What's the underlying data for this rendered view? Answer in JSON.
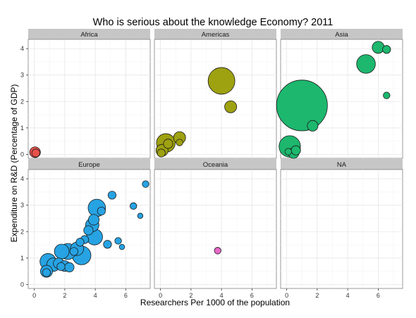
{
  "chart_data": {
    "type": "scatter",
    "title": "Who is serious about the knowledge Economy?   2011",
    "xlabel": "Researchers Per 1000 of the population",
    "ylabel": "Expenditure on R&D (Percentage of GDP)",
    "xlim": [
      -0.4,
      7.6
    ],
    "ylim": [
      -0.15,
      4.35
    ],
    "x_ticks": [
      "0",
      "2",
      "4",
      "6"
    ],
    "y_ticks": [
      "0",
      "1",
      "2",
      "3",
      "4"
    ],
    "facet_layout": "2 rows x 3 columns",
    "grid": true,
    "point_size_meaning": "relative bubble size",
    "panels": [
      {
        "label": "Africa",
        "color": "#E8514A",
        "points": [
          {
            "x": 0.05,
            "y": 0.08,
            "size": 4
          },
          {
            "x": 0.1,
            "y": 0.05,
            "size": 3
          }
        ]
      },
      {
        "label": "Americas",
        "color": "#9EA110",
        "points": [
          {
            "x": 4.0,
            "y": 2.78,
            "size": 10
          },
          {
            "x": 4.6,
            "y": 1.8,
            "size": 4.5
          },
          {
            "x": 1.25,
            "y": 0.63,
            "size": 4.5
          },
          {
            "x": 0.35,
            "y": 0.43,
            "size": 7
          },
          {
            "x": 0.5,
            "y": 0.4,
            "size": 3.5
          },
          {
            "x": 1.25,
            "y": 0.45,
            "size": 2.5
          },
          {
            "x": 0.1,
            "y": 0.15,
            "size": 4.5
          },
          {
            "x": 0.05,
            "y": 0.05,
            "size": 3
          }
        ]
      },
      {
        "label": "Asia",
        "color": "#1DB76E",
        "points": [
          {
            "x": 1.0,
            "y": 1.85,
            "size": 19
          },
          {
            "x": 6.0,
            "y": 4.05,
            "size": 4.5
          },
          {
            "x": 6.55,
            "y": 3.97,
            "size": 3
          },
          {
            "x": 5.2,
            "y": 3.42,
            "size": 7
          },
          {
            "x": 6.55,
            "y": 2.23,
            "size": 2.5
          },
          {
            "x": 1.7,
            "y": 1.08,
            "size": 4
          },
          {
            "x": 0.2,
            "y": 0.3,
            "size": 8
          },
          {
            "x": 0.6,
            "y": 0.15,
            "size": 3.5
          },
          {
            "x": 0.45,
            "y": 0.05,
            "size": 4
          },
          {
            "x": 0.1,
            "y": 0.1,
            "size": 2.5
          }
        ]
      },
      {
        "label": "Europe",
        "color": "#27A3E3",
        "points": [
          {
            "x": 4.1,
            "y": 2.9,
            "size": 6.5
          },
          {
            "x": 4.4,
            "y": 2.78,
            "size": 3
          },
          {
            "x": 5.1,
            "y": 3.38,
            "size": 3
          },
          {
            "x": 6.5,
            "y": 2.97,
            "size": 2.5
          },
          {
            "x": 6.95,
            "y": 2.6,
            "size": 2
          },
          {
            "x": 7.3,
            "y": 3.8,
            "size": 2.5
          },
          {
            "x": 3.9,
            "y": 2.45,
            "size": 4
          },
          {
            "x": 3.8,
            "y": 2.25,
            "size": 5
          },
          {
            "x": 3.55,
            "y": 2.05,
            "size": 3.5
          },
          {
            "x": 3.3,
            "y": 1.7,
            "size": 3
          },
          {
            "x": 3.95,
            "y": 1.8,
            "size": 6
          },
          {
            "x": 3.0,
            "y": 1.6,
            "size": 3
          },
          {
            "x": 2.8,
            "y": 1.35,
            "size": 5
          },
          {
            "x": 3.1,
            "y": 1.1,
            "size": 7
          },
          {
            "x": 2.6,
            "y": 1.25,
            "size": 3
          },
          {
            "x": 2.2,
            "y": 1.25,
            "size": 6
          },
          {
            "x": 1.8,
            "y": 1.25,
            "size": 5.5
          },
          {
            "x": 4.8,
            "y": 1.52,
            "size": 3
          },
          {
            "x": 5.5,
            "y": 1.65,
            "size": 2.5
          },
          {
            "x": 5.75,
            "y": 1.42,
            "size": 2
          },
          {
            "x": 0.9,
            "y": 0.87,
            "size": 6
          },
          {
            "x": 1.25,
            "y": 0.75,
            "size": 5
          },
          {
            "x": 1.6,
            "y": 0.8,
            "size": 4
          },
          {
            "x": 2.0,
            "y": 0.7,
            "size": 4
          },
          {
            "x": 2.3,
            "y": 0.65,
            "size": 3.5
          },
          {
            "x": 1.75,
            "y": 0.68,
            "size": 3
          },
          {
            "x": 0.8,
            "y": 0.5,
            "size": 4.5
          },
          {
            "x": 0.8,
            "y": 0.45,
            "size": 3
          }
        ]
      },
      {
        "label": "Oceania",
        "color": "#E868C8",
        "points": [
          {
            "x": 3.75,
            "y": 1.28,
            "size": 2.5
          }
        ]
      },
      {
        "label": "NA",
        "color": "#999999",
        "points": []
      }
    ]
  }
}
